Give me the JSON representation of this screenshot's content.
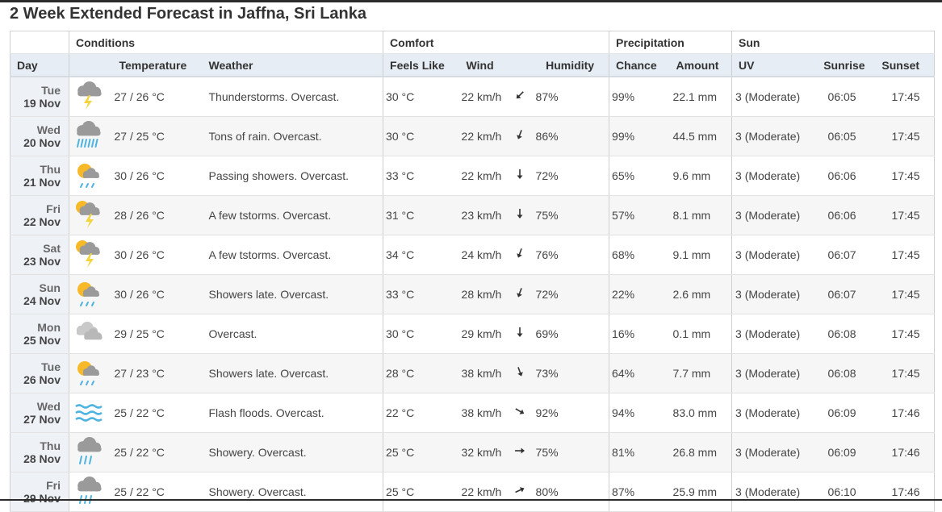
{
  "page": {
    "title": "2 Week Extended Forecast in Jaffna, Sri Lanka"
  },
  "table": {
    "groups": {
      "conditions": "Conditions",
      "comfort": "Comfort",
      "precipitation": "Precipitation",
      "sun": "Sun"
    },
    "columns": {
      "day": "Day",
      "temperature": "Temperature",
      "weather": "Weather",
      "feels_like": "Feels Like",
      "wind": "Wind",
      "humidity": "Humidity",
      "chance": "Chance",
      "amount": "Amount",
      "uv": "UV",
      "sunrise": "Sunrise",
      "sunset": "Sunset"
    },
    "rows": [
      {
        "dow": "Tue",
        "date": "19 Nov",
        "icon": "thunderstorm-cloud-icon",
        "temp": "27 / 26 °C",
        "weather": "Thunderstorms. Overcast.",
        "feels": "30 °C",
        "wind": "22 km/h",
        "wind_dir_deg": 45,
        "humidity": "87%",
        "chance": "99%",
        "amount": "22.1 mm",
        "uv": "3 (Moderate)",
        "sunrise": "06:05",
        "sunset": "17:45"
      },
      {
        "dow": "Wed",
        "date": "20 Nov",
        "icon": "heavy-rain-cloud-icon",
        "temp": "27 / 25 °C",
        "weather": "Tons of rain. Overcast.",
        "feels": "30 °C",
        "wind": "22 km/h",
        "wind_dir_deg": 20,
        "humidity": "86%",
        "chance": "99%",
        "amount": "44.5 mm",
        "uv": "3 (Moderate)",
        "sunrise": "06:05",
        "sunset": "17:45"
      },
      {
        "dow": "Thu",
        "date": "21 Nov",
        "icon": "sun-showers-icon",
        "temp": "30 / 26 °C",
        "weather": "Passing showers. Overcast.",
        "feels": "33 °C",
        "wind": "22 km/h",
        "wind_dir_deg": 0,
        "humidity": "72%",
        "chance": "65%",
        "amount": "9.6 mm",
        "uv": "3 (Moderate)",
        "sunrise": "06:06",
        "sunset": "17:45"
      },
      {
        "dow": "Fri",
        "date": "22 Nov",
        "icon": "sun-thunderstorm-icon",
        "temp": "28 / 26 °C",
        "weather": "A few tstorms. Overcast.",
        "feels": "31 °C",
        "wind": "23 km/h",
        "wind_dir_deg": 0,
        "humidity": "75%",
        "chance": "57%",
        "amount": "8.1 mm",
        "uv": "3 (Moderate)",
        "sunrise": "06:06",
        "sunset": "17:45"
      },
      {
        "dow": "Sat",
        "date": "23 Nov",
        "icon": "sun-thunderstorm-icon",
        "temp": "30 / 26 °C",
        "weather": "A few tstorms. Overcast.",
        "feels": "34 °C",
        "wind": "24 km/h",
        "wind_dir_deg": 20,
        "humidity": "76%",
        "chance": "68%",
        "amount": "9.1 mm",
        "uv": "3 (Moderate)",
        "sunrise": "06:07",
        "sunset": "17:45"
      },
      {
        "dow": "Sun",
        "date": "24 Nov",
        "icon": "sun-showers-icon",
        "temp": "30 / 26 °C",
        "weather": "Showers late. Overcast.",
        "feels": "33 °C",
        "wind": "28 km/h",
        "wind_dir_deg": 20,
        "humidity": "72%",
        "chance": "22%",
        "amount": "2.6 mm",
        "uv": "3 (Moderate)",
        "sunrise": "06:07",
        "sunset": "17:45"
      },
      {
        "dow": "Mon",
        "date": "25 Nov",
        "icon": "overcast-clouds-icon",
        "temp": "29 / 25 °C",
        "weather": "Overcast.",
        "feels": "30 °C",
        "wind": "29 km/h",
        "wind_dir_deg": 0,
        "humidity": "69%",
        "chance": "16%",
        "amount": "0.1 mm",
        "uv": "3 (Moderate)",
        "sunrise": "06:08",
        "sunset": "17:45"
      },
      {
        "dow": "Tue",
        "date": "26 Nov",
        "icon": "sun-showers-icon",
        "temp": "27 / 23 °C",
        "weather": "Showers late. Overcast.",
        "feels": "28 °C",
        "wind": "38 km/h",
        "wind_dir_deg": -20,
        "humidity": "73%",
        "chance": "64%",
        "amount": "7.7 mm",
        "uv": "3 (Moderate)",
        "sunrise": "06:08",
        "sunset": "17:45"
      },
      {
        "dow": "Wed",
        "date": "27 Nov",
        "icon": "flood-waves-icon",
        "temp": "25 / 22 °C",
        "weather": "Flash floods. Overcast.",
        "feels": "22 °C",
        "wind": "38 km/h",
        "wind_dir_deg": -60,
        "humidity": "92%",
        "chance": "94%",
        "amount": "83.0 mm",
        "uv": "3 (Moderate)",
        "sunrise": "06:09",
        "sunset": "17:46"
      },
      {
        "dow": "Thu",
        "date": "28 Nov",
        "icon": "rain-cloud-icon",
        "temp": "25 / 22 °C",
        "weather": "Showery. Overcast.",
        "feels": "25 °C",
        "wind": "32 km/h",
        "wind_dir_deg": -90,
        "humidity": "75%",
        "chance": "81%",
        "amount": "26.8 mm",
        "uv": "3 (Moderate)",
        "sunrise": "06:09",
        "sunset": "17:46"
      },
      {
        "dow": "Fri",
        "date": "29 Nov",
        "icon": "rain-cloud-icon",
        "temp": "25 / 22 °C",
        "weather": "Showery. Overcast.",
        "feels": "25 °C",
        "wind": "22 km/h",
        "wind_dir_deg": -115,
        "humidity": "80%",
        "chance": "87%",
        "amount": "25.9 mm",
        "uv": "3 (Moderate)",
        "sunrise": "06:10",
        "sunset": "17:46"
      }
    ]
  },
  "colors": {
    "header_bg": "#e7edf4",
    "day_col_bg": "#eef2f7",
    "stripe_bg": "#f6f6f6",
    "cloud_gray": "#9a9a9a",
    "sun_yellow": "#f7b928",
    "bolt_yellow": "#f4d43a",
    "rain_blue": "#4fb3e0"
  }
}
